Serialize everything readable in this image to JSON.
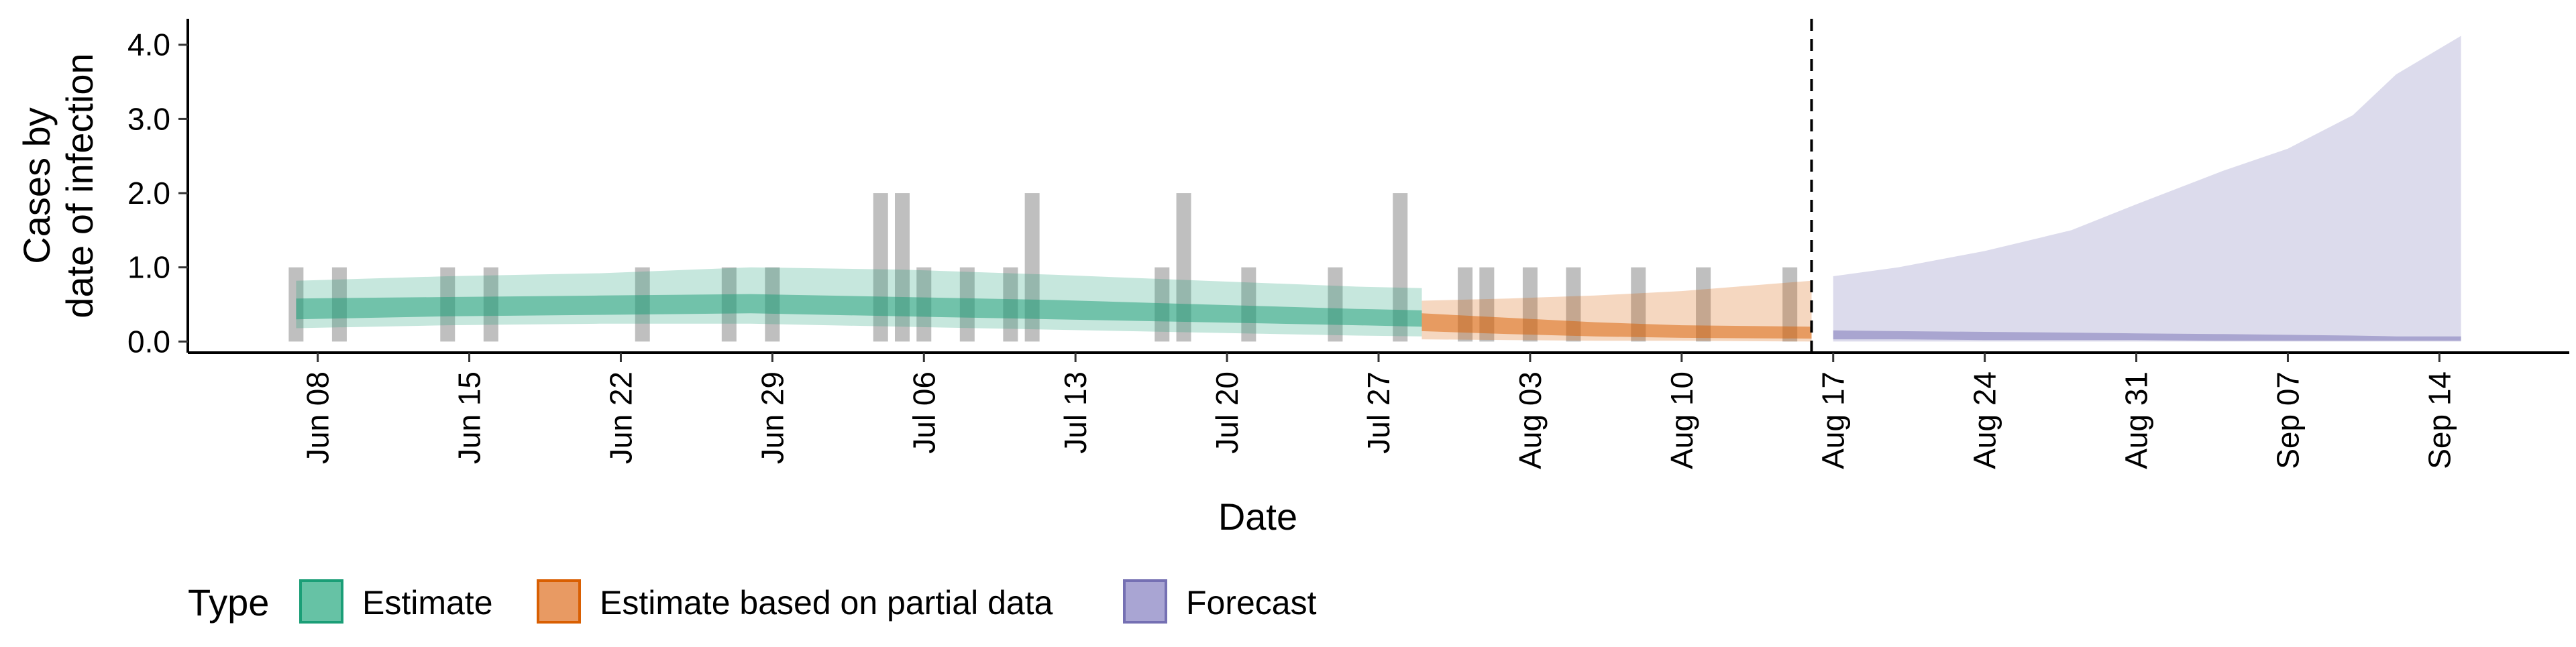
{
  "chart_data": {
    "type": "area",
    "xlabel": "Date",
    "ylabel_lines": [
      "Cases by",
      "date of infection"
    ],
    "ylim": [
      -0.15,
      4.35
    ],
    "yticks": [
      0.0,
      1.0,
      2.0,
      3.0,
      4.0
    ],
    "ytick_labels": [
      "0.0",
      "1.0",
      "2.0",
      "3.0",
      "4.0"
    ],
    "xlim": [
      "2020-06-02",
      "2020-09-20"
    ],
    "xticks": [
      "2020-06-08",
      "2020-06-15",
      "2020-06-22",
      "2020-06-29",
      "2020-07-06",
      "2020-07-13",
      "2020-07-20",
      "2020-07-27",
      "2020-08-03",
      "2020-08-10",
      "2020-08-17",
      "2020-08-24",
      "2020-08-31",
      "2020-09-07",
      "2020-09-14"
    ],
    "xtick_labels": [
      "Jun 08",
      "Jun 15",
      "Jun 22",
      "Jun 29",
      "Jul 06",
      "Jul 13",
      "Jul 20",
      "Jul 27",
      "Aug 03",
      "Aug 10",
      "Aug 17",
      "Aug 24",
      "Aug 31",
      "Sep 07",
      "Sep 14"
    ],
    "forecast_start_line": "2020-08-16",
    "reported_case_bars": [
      {
        "date": "2020-06-07",
        "value": 1
      },
      {
        "date": "2020-06-09",
        "value": 1
      },
      {
        "date": "2020-06-14",
        "value": 1
      },
      {
        "date": "2020-06-16",
        "value": 1
      },
      {
        "date": "2020-06-23",
        "value": 1
      },
      {
        "date": "2020-06-27",
        "value": 1
      },
      {
        "date": "2020-06-29",
        "value": 1
      },
      {
        "date": "2020-07-04",
        "value": 2
      },
      {
        "date": "2020-07-05",
        "value": 2
      },
      {
        "date": "2020-07-06",
        "value": 1
      },
      {
        "date": "2020-07-08",
        "value": 1
      },
      {
        "date": "2020-07-10",
        "value": 1
      },
      {
        "date": "2020-07-11",
        "value": 2
      },
      {
        "date": "2020-07-17",
        "value": 1
      },
      {
        "date": "2020-07-18",
        "value": 2
      },
      {
        "date": "2020-07-21",
        "value": 1
      },
      {
        "date": "2020-07-25",
        "value": 1
      },
      {
        "date": "2020-07-28",
        "value": 2
      },
      {
        "date": "2020-07-31",
        "value": 1
      },
      {
        "date": "2020-08-01",
        "value": 1
      },
      {
        "date": "2020-08-03",
        "value": 1
      },
      {
        "date": "2020-08-05",
        "value": 1
      },
      {
        "date": "2020-08-08",
        "value": 1
      },
      {
        "date": "2020-08-11",
        "value": 1
      },
      {
        "date": "2020-08-15",
        "value": 1
      }
    ],
    "series": [
      {
        "name": "Estimate",
        "color": "#1b9e77",
        "x": [
          "2020-06-07",
          "2020-06-14",
          "2020-06-21",
          "2020-06-28",
          "2020-07-05",
          "2020-07-12",
          "2020-07-19",
          "2020-07-26",
          "2020-07-29"
        ],
        "outer_upper": [
          0.82,
          0.88,
          0.92,
          1.0,
          0.97,
          0.9,
          0.82,
          0.74,
          0.72
        ],
        "outer_lower": [
          0.18,
          0.22,
          0.24,
          0.24,
          0.2,
          0.16,
          0.12,
          0.08,
          0.07
        ],
        "inner_upper": [
          0.58,
          0.6,
          0.62,
          0.64,
          0.6,
          0.56,
          0.5,
          0.44,
          0.42
        ],
        "inner_lower": [
          0.3,
          0.34,
          0.36,
          0.38,
          0.34,
          0.3,
          0.26,
          0.22,
          0.2
        ]
      },
      {
        "name": "Estimate based on partial data",
        "color": "#d95f02",
        "x": [
          "2020-07-29",
          "2020-08-02",
          "2020-08-06",
          "2020-08-10",
          "2020-08-16"
        ],
        "outer_upper": [
          0.55,
          0.58,
          0.62,
          0.68,
          0.82
        ],
        "outer_lower": [
          0.03,
          0.02,
          0.01,
          0.01,
          0.0
        ],
        "inner_upper": [
          0.38,
          0.32,
          0.26,
          0.22,
          0.2
        ],
        "inner_lower": [
          0.14,
          0.1,
          0.07,
          0.05,
          0.04
        ]
      },
      {
        "name": "Forecast",
        "color": "#7570b3",
        "x": [
          "2020-08-17",
          "2020-08-20",
          "2020-08-24",
          "2020-08-28",
          "2020-08-31",
          "2020-09-04",
          "2020-09-07",
          "2020-09-10",
          "2020-09-12",
          "2020-09-15"
        ],
        "outer_upper": [
          0.88,
          1.0,
          1.22,
          1.5,
          1.85,
          2.3,
          2.6,
          3.05,
          3.6,
          4.12
        ],
        "outer_lower": [
          0.0,
          0.0,
          0.0,
          0.0,
          0.0,
          0.0,
          0.0,
          0.0,
          0.0,
          0.0
        ],
        "inner_upper": [
          0.15,
          0.14,
          0.13,
          0.12,
          0.11,
          0.1,
          0.09,
          0.08,
          0.07,
          0.07
        ],
        "inner_lower": [
          0.03,
          0.03,
          0.02,
          0.02,
          0.02,
          0.01,
          0.01,
          0.01,
          0.01,
          0.01
        ]
      }
    ],
    "legend": {
      "title": "Type",
      "placement": "bottom",
      "entries": [
        {
          "label": "Estimate",
          "fill": "#66c2a5",
          "border": "#1b9e77"
        },
        {
          "label": "Estimate based on partial data",
          "fill": "#e89a63",
          "border": "#d95f02"
        },
        {
          "label": "Forecast",
          "fill": "#a9a5d3",
          "border": "#7570b3"
        }
      ]
    },
    "grid": false
  }
}
